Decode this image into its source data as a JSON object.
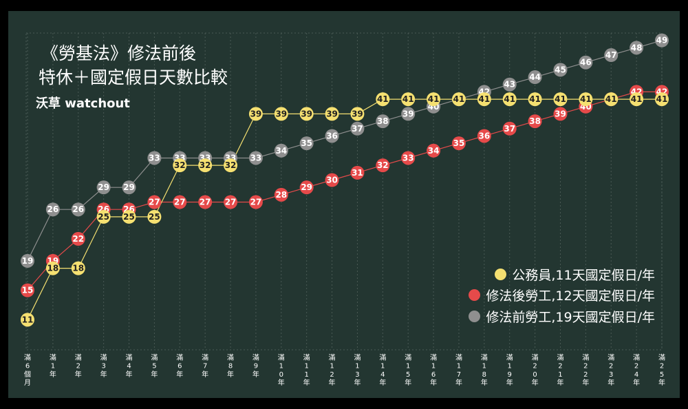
{
  "header": {
    "title_line1": "《勞基法》修法前後",
    "title_line2": "特休＋國定假日天數比較",
    "brand": "沃草 watchout"
  },
  "colors": {
    "background": "#233631",
    "grid": "#4a5a55",
    "civil": "#f5e071",
    "post": "#e64a4a",
    "pre": "#8f8f8f"
  },
  "chart_data": {
    "type": "line",
    "title": "《勞基法》修法前後 特休＋國定假日天數比較",
    "categories": [
      "滿6個月",
      "滿1年",
      "滿2年",
      "滿3年",
      "滿4年",
      "滿5年",
      "滿6年",
      "滿7年",
      "滿8年",
      "滿9年",
      "滿10年",
      "滿11年",
      "滿12年",
      "滿13年",
      "滿14年",
      "滿15年",
      "滿16年",
      "滿17年",
      "滿18年",
      "滿19年",
      "滿20年",
      "滿21年",
      "滿22年",
      "滿23年",
      "滿24年",
      "滿25年"
    ],
    "series": [
      {
        "name": "公務員,11天國定假日/年",
        "color": "#f5e071",
        "values": [
          11,
          18,
          18,
          25,
          25,
          25,
          32,
          32,
          32,
          39,
          39,
          39,
          39,
          39,
          41,
          41,
          41,
          41,
          41,
          41,
          41,
          41,
          41,
          41,
          41,
          41
        ]
      },
      {
        "name": "修法後勞工,12天國定假日/年",
        "color": "#e64a4a",
        "values": [
          15,
          19,
          22,
          26,
          26,
          27,
          27,
          27,
          27,
          27,
          28,
          29,
          30,
          31,
          32,
          33,
          34,
          35,
          36,
          37,
          38,
          39,
          40,
          41,
          42,
          42
        ]
      },
      {
        "name": "修法前勞工,19天國定假日/年",
        "color": "#8f8f8f",
        "values": [
          19,
          26,
          26,
          29,
          29,
          33,
          33,
          33,
          33,
          33,
          34,
          35,
          36,
          37,
          38,
          39,
          40,
          41,
          42,
          43,
          44,
          45,
          46,
          47,
          48,
          49
        ]
      }
    ],
    "ylim": [
      10,
      50
    ],
    "grid": true,
    "legend_position": "right"
  }
}
